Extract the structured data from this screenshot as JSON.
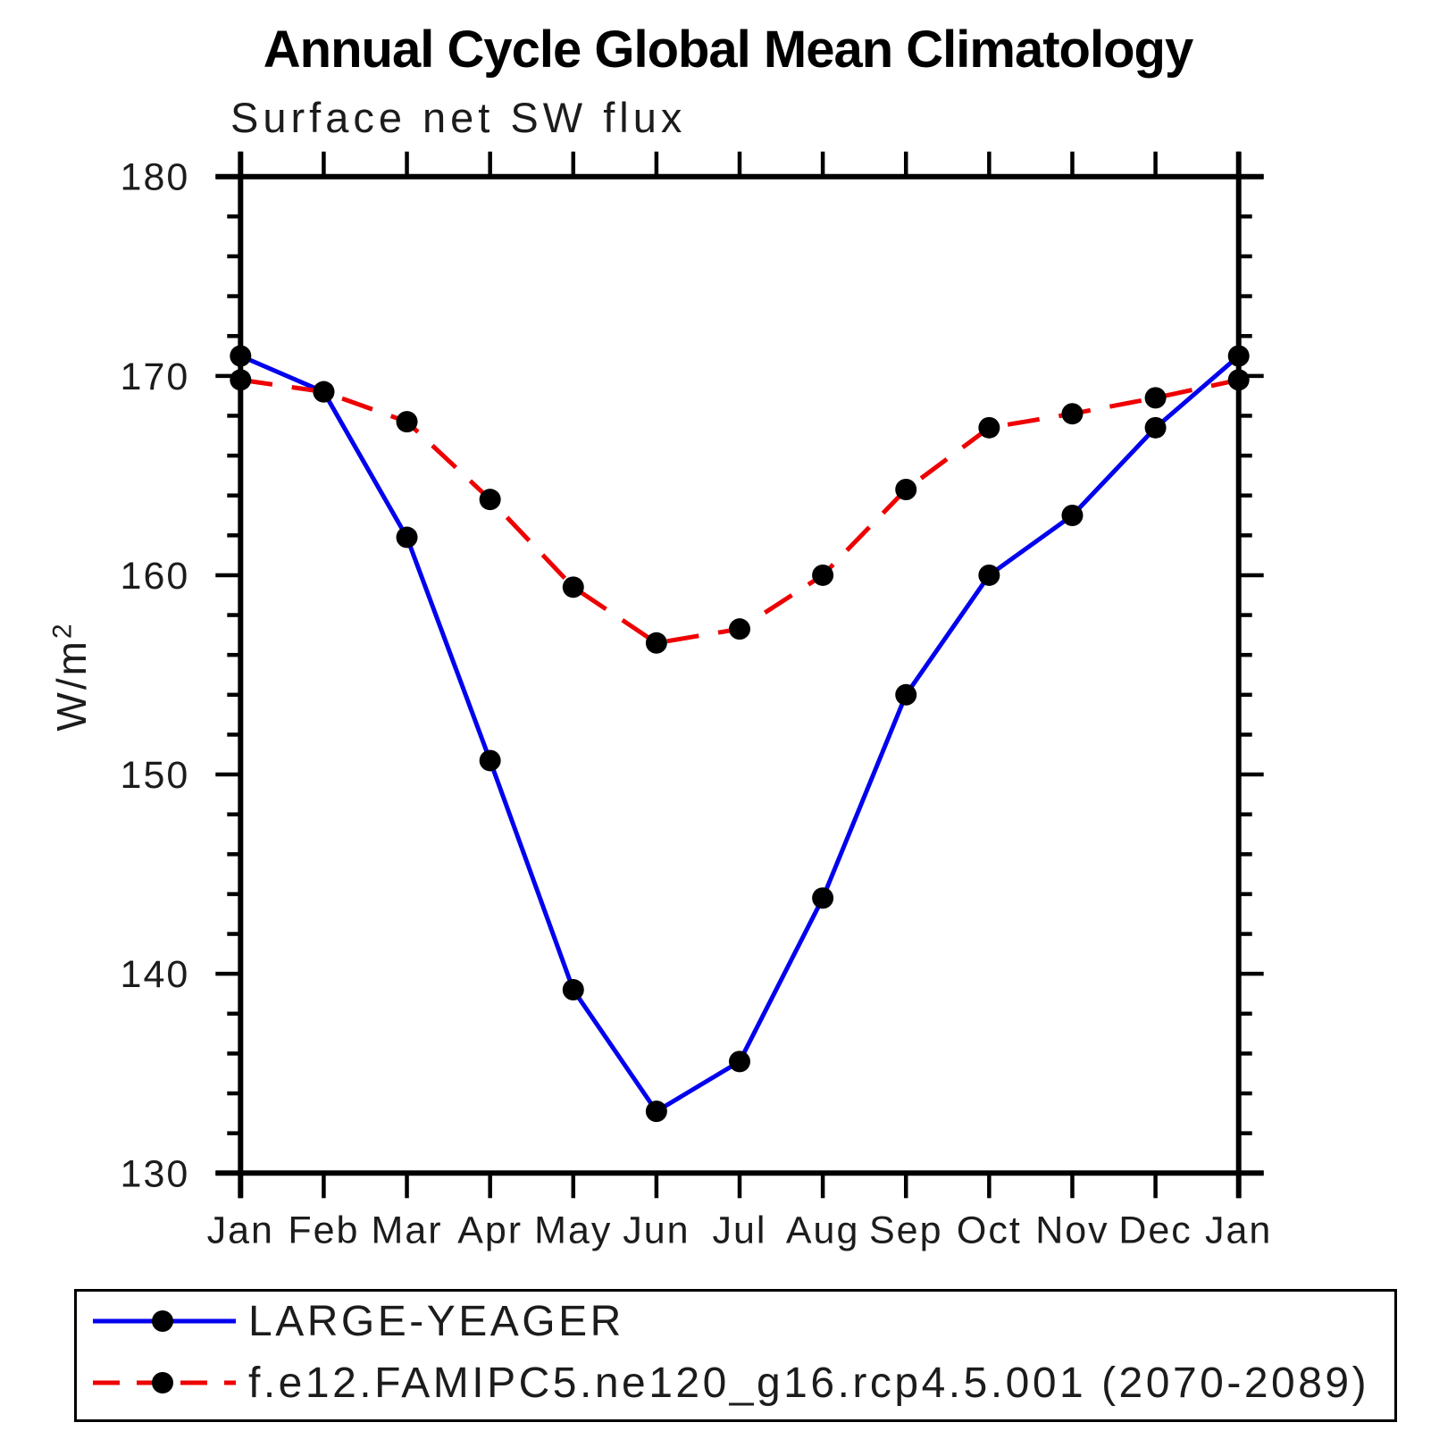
{
  "title": "Annual Cycle Global Mean Climatology",
  "subtitle": "Surface net SW flux",
  "y_axis": {
    "label_base": "W/m",
    "label_sup": "2",
    "tick_labels": [
      "130",
      "140",
      "150",
      "160",
      "170",
      "180"
    ]
  },
  "x_axis": {
    "tick_labels": [
      "Jan",
      "Feb",
      "Mar",
      "Apr",
      "May",
      "Jun",
      "Jul",
      "Aug",
      "Sep",
      "Oct",
      "Nov",
      "Dec",
      "Jan"
    ]
  },
  "legend": {
    "entries": [
      {
        "label": "LARGE-YEAGER",
        "line_color": "#0000ee",
        "line_style": "solid",
        "marker_color": "#000000"
      },
      {
        "label": "f.e12.FAMIPC5.ne120_g16.rcp4.5.001 (2070-2089)",
        "line_color": "#ee0000",
        "line_style": "dashed",
        "marker_color": "#000000"
      }
    ]
  },
  "chart_data": {
    "type": "line",
    "title": "Annual Cycle Global Mean Climatology",
    "subtitle": "Surface net SW flux",
    "xlabel": "",
    "ylabel": "W/m^2",
    "x": [
      "Jan",
      "Feb",
      "Mar",
      "Apr",
      "May",
      "Jun",
      "Jul",
      "Aug",
      "Sep",
      "Oct",
      "Nov",
      "Dec",
      "Jan"
    ],
    "ylim": [
      130,
      180
    ],
    "yticks_major": [
      130,
      140,
      150,
      160,
      170,
      180
    ],
    "ytick_minor_step": 2,
    "grid": false,
    "legend_position": "bottom-left-box",
    "series": [
      {
        "name": "LARGE-YEAGER",
        "color": "#0000ee",
        "style": "solid",
        "marker": "filled-circle",
        "marker_color": "#000000",
        "values": [
          171.0,
          169.2,
          161.9,
          150.7,
          139.2,
          133.1,
          135.6,
          143.8,
          154.0,
          160.0,
          163.0,
          167.4,
          171.0
        ]
      },
      {
        "name": "f.e12.FAMIPC5.ne120_g16.rcp4.5.001 (2070-2089)",
        "color": "#ee0000",
        "style": "dashed",
        "marker": "filled-circle",
        "marker_color": "#000000",
        "values": [
          169.8,
          169.2,
          167.7,
          163.8,
          159.4,
          156.6,
          157.3,
          160.0,
          164.3,
          167.4,
          168.1,
          168.9,
          169.8
        ]
      }
    ]
  }
}
